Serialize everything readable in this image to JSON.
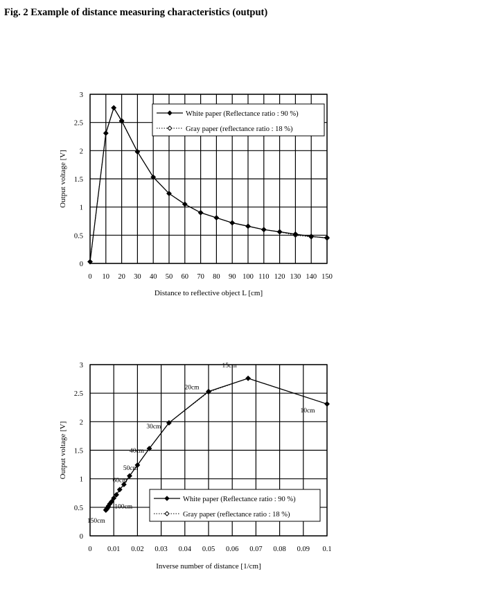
{
  "figure_title": "Fig. 2 Example of  distance measuring characteristics (output)",
  "chart_data": [
    {
      "type": "line",
      "xlabel": "Distance to reflective object L [cm]",
      "ylabel": "Output voltage [V]",
      "xlim": [
        0,
        150
      ],
      "ylim": [
        0,
        3
      ],
      "x_ticks": [
        0,
        10,
        20,
        30,
        40,
        50,
        60,
        70,
        80,
        90,
        100,
        110,
        120,
        130,
        140,
        150
      ],
      "y_ticks": [
        0,
        0.5,
        1,
        1.5,
        2,
        2.5,
        3
      ],
      "grid": true,
      "legend_position": "top-right",
      "series": [
        {
          "name": "White paper (Reflectance ratio : 90 %)",
          "marker": "filled-diamond",
          "line": "solid",
          "x": [
            0,
            10,
            15,
            20,
            30,
            40,
            50,
            60,
            70,
            80,
            90,
            100,
            110,
            120,
            130,
            140,
            150
          ],
          "y": [
            0.03,
            2.31,
            2.76,
            2.53,
            1.98,
            1.53,
            1.24,
            1.05,
            0.9,
            0.81,
            0.72,
            0.66,
            0.6,
            0.56,
            0.52,
            0.48,
            0.45
          ]
        },
        {
          "name": "Gray paper (reflectance ratio : 18 %)",
          "marker": "open-diamond",
          "line": "dotted",
          "x": [
            0,
            10,
            15,
            20,
            30,
            40,
            50,
            60,
            70,
            80,
            90,
            100,
            110,
            120,
            130,
            140,
            150
          ],
          "y": [
            0.03,
            2.31,
            2.76,
            2.52,
            1.98,
            1.53,
            1.24,
            1.05,
            0.9,
            0.81,
            0.72,
            0.66,
            0.6,
            0.56,
            0.5,
            0.47,
            0.46
          ]
        }
      ]
    },
    {
      "type": "line",
      "xlabel": "Inverse number of distance [1/cm]",
      "ylabel": "Output voltage [V]",
      "xlim": [
        0,
        0.1
      ],
      "ylim": [
        0,
        3
      ],
      "x_ticks": [
        0,
        0.01,
        0.02,
        0.03,
        0.04,
        0.05,
        0.06,
        0.07,
        0.08,
        0.09,
        0.1
      ],
      "y_ticks": [
        0,
        0.5,
        1,
        1.5,
        2,
        2.5,
        3
      ],
      "grid": true,
      "legend_position": "bottom-right",
      "series": [
        {
          "name": "White paper (Reflectance ratio : 90 %)",
          "marker": "filled-diamond",
          "line": "solid",
          "x": [
            0.00667,
            0.00714,
            0.00769,
            0.00833,
            0.00909,
            0.01,
            0.01111,
            0.0125,
            0.01429,
            0.01667,
            0.02,
            0.025,
            0.0333,
            0.05,
            0.0667,
            0.1
          ],
          "y": [
            0.45,
            0.48,
            0.52,
            0.56,
            0.6,
            0.66,
            0.72,
            0.81,
            0.9,
            1.05,
            1.24,
            1.53,
            1.98,
            2.53,
            2.76,
            2.31
          ]
        },
        {
          "name": "Gray paper (reflectance ratio : 18 %)",
          "marker": "open-diamond",
          "line": "dotted",
          "x": [
            0.00667,
            0.00714,
            0.00769,
            0.00833,
            0.00909,
            0.01,
            0.01111,
            0.0125,
            0.01429,
            0.01667,
            0.02,
            0.025,
            0.0333,
            0.05,
            0.0667,
            0.1
          ],
          "y": [
            0.46,
            0.47,
            0.5,
            0.56,
            0.6,
            0.66,
            0.72,
            0.81,
            0.9,
            1.05,
            1.24,
            1.53,
            1.98,
            2.52,
            2.76,
            2.31
          ]
        }
      ],
      "annotations": [
        {
          "text": "150cm",
          "x": 0.00667,
          "y": 0.45
        },
        {
          "text": "100cm",
          "x": 0.01,
          "y": 0.66
        },
        {
          "text": "60cm",
          "x": 0.01667,
          "y": 1.05
        },
        {
          "text": "50cm",
          "x": 0.02,
          "y": 1.24
        },
        {
          "text": "40cm",
          "x": 0.025,
          "y": 1.53
        },
        {
          "text": "30cm",
          "x": 0.0333,
          "y": 1.98
        },
        {
          "text": "20cm",
          "x": 0.05,
          "y": 2.53
        },
        {
          "text": "15cm",
          "x": 0.0667,
          "y": 2.76
        },
        {
          "text": "10cm",
          "x": 0.1,
          "y": 2.31
        }
      ]
    }
  ]
}
